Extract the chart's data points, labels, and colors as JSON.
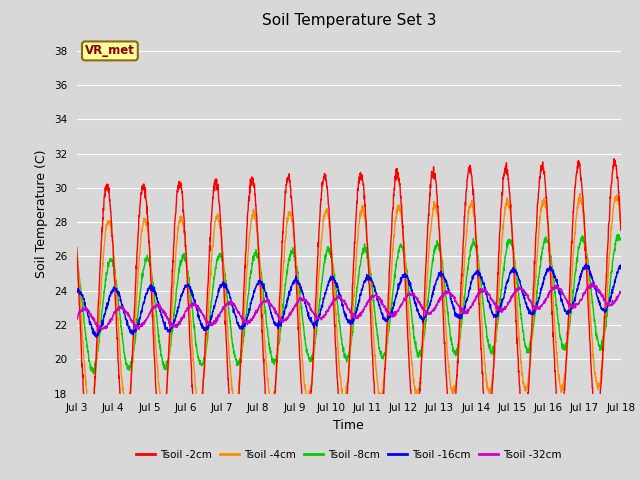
{
  "title": "Soil Temperature Set 3",
  "xlabel": "Time",
  "ylabel": "Soil Temperature (C)",
  "ylim": [
    18,
    39
  ],
  "yticks": [
    18,
    20,
    22,
    24,
    26,
    28,
    30,
    32,
    34,
    36,
    38
  ],
  "xtick_labels": [
    "Jul 3",
    "Jul 4",
    "Jul 5",
    "Jul 6",
    "Jul 7",
    "Jul 8",
    "Jul 9",
    "Jul 10",
    "Jul 11",
    "Jul 12",
    "Jul 13",
    "Jul 14",
    "Jul 15",
    "Jul 16",
    "Jul 17",
    "Jul 18"
  ],
  "series_colors": [
    "#ff0000",
    "#ff8c00",
    "#00cc00",
    "#0000ff",
    "#cc00cc"
  ],
  "series_labels": [
    "Tsoil -2cm",
    "Tsoil -4cm",
    "Tsoil -8cm",
    "Tsoil -16cm",
    "Tsoil -32cm"
  ],
  "legend_label": "VR_met",
  "background_color": "#d8d8d8",
  "plot_bg_color": "#d8d8d8",
  "grid_color": "#ffffff",
  "n_days": 15,
  "pts_per_day": 144,
  "base_temp": 22.5,
  "base_trend_slope": 0.1,
  "amp2": 7.5,
  "amp4": 5.5,
  "amp8": 3.2,
  "amp16": 1.3,
  "amp32": 0.6,
  "phase_lag2": 0.0,
  "phase_lag4": 1.0,
  "phase_lag8": 2.5,
  "phase_lag16": 5.0,
  "phase_lag32": 9.0,
  "peak_hour": 14.0
}
